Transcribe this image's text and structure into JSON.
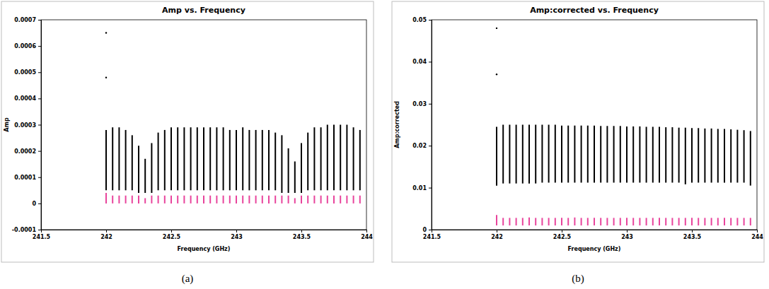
{
  "chart_data": [
    {
      "type": "range",
      "title": "Amp vs. Frequency",
      "x_label": "Frequency (GHz)",
      "y_label": "Amp",
      "caption": "(a)",
      "xlim": [
        241.5,
        244
      ],
      "xticks": [
        241.5,
        242,
        242.5,
        243,
        243.5,
        244
      ],
      "ylim": [
        -0.0001,
        0.0007
      ],
      "yticks": [
        -0.0001,
        0,
        0.0001,
        0.0002,
        0.0003,
        0.0004,
        0.0005,
        0.0006,
        0.0007
      ],
      "series": [
        {
          "color": "#000000",
          "x": [
            242,
            242.05,
            242.1,
            242.15,
            242.2,
            242.25,
            242.3,
            242.35,
            242.4,
            242.45,
            242.5,
            242.55,
            242.6,
            242.65,
            242.7,
            242.75,
            242.8,
            242.85,
            242.9,
            242.95,
            243,
            243.05,
            243.1,
            243.15,
            243.2,
            243.25,
            243.3,
            243.35,
            243.4,
            243.45,
            243.5,
            243.55,
            243.6,
            243.65,
            243.7,
            243.75,
            243.8,
            243.85,
            243.9,
            243.95
          ],
          "low": [
            5e-05,
            5e-05,
            5e-05,
            5e-05,
            5e-05,
            4e-05,
            4e-05,
            4e-05,
            5e-05,
            5e-05,
            5e-05,
            5e-05,
            5e-05,
            5e-05,
            5e-05,
            5e-05,
            5e-05,
            5e-05,
            5e-05,
            5e-05,
            5e-05,
            5e-05,
            5e-05,
            5e-05,
            5e-05,
            5e-05,
            5e-05,
            4e-05,
            4e-05,
            4e-05,
            4e-05,
            5e-05,
            5e-05,
            5e-05,
            5e-05,
            5e-05,
            5e-05,
            5e-05,
            5e-05,
            5e-05
          ],
          "high": [
            0.00028,
            0.00029,
            0.00029,
            0.00028,
            0.00026,
            0.00022,
            0.00017,
            0.00023,
            0.00027,
            0.00028,
            0.00029,
            0.00029,
            0.00029,
            0.00029,
            0.00029,
            0.00029,
            0.00029,
            0.00029,
            0.00029,
            0.00028,
            0.00028,
            0.00029,
            0.00028,
            0.00028,
            0.00028,
            0.00028,
            0.00027,
            0.00026,
            0.00021,
            0.00016,
            0.00023,
            0.00027,
            0.00029,
            0.00029,
            0.0003,
            0.0003,
            0.0003,
            0.0003,
            0.00029,
            0.00028
          ]
        },
        {
          "color": "#e8449c",
          "x": [
            242,
            242.05,
            242.1,
            242.15,
            242.2,
            242.25,
            242.3,
            242.35,
            242.4,
            242.45,
            242.5,
            242.55,
            242.6,
            242.65,
            242.7,
            242.75,
            242.8,
            242.85,
            242.9,
            242.95,
            243,
            243.05,
            243.1,
            243.15,
            243.2,
            243.25,
            243.3,
            243.35,
            243.4,
            243.45,
            243.5,
            243.55,
            243.6,
            243.65,
            243.7,
            243.75,
            243.8,
            243.85,
            243.9,
            243.95
          ],
          "low": [
            0,
            0,
            0,
            0,
            0,
            0,
            0,
            0,
            0,
            0,
            0,
            0,
            0,
            0,
            0,
            0,
            0,
            0,
            0,
            0,
            0,
            0,
            0,
            0,
            0,
            0,
            0,
            0,
            0,
            0,
            0,
            0,
            0,
            0,
            0,
            0,
            0,
            0,
            0,
            0
          ],
          "high": [
            4e-05,
            3e-05,
            3e-05,
            3e-05,
            3e-05,
            3e-05,
            2e-05,
            3e-05,
            3e-05,
            3e-05,
            3e-05,
            3e-05,
            3e-05,
            3e-05,
            3e-05,
            3e-05,
            3e-05,
            3e-05,
            3e-05,
            3e-05,
            3e-05,
            3e-05,
            3e-05,
            3e-05,
            3e-05,
            3e-05,
            3e-05,
            3e-05,
            3e-05,
            2e-05,
            3e-05,
            3e-05,
            3e-05,
            3e-05,
            3e-05,
            3e-05,
            3e-05,
            3e-05,
            3e-05,
            3e-05
          ]
        },
        {
          "type": "scatter",
          "color": "#000000",
          "x": [
            242,
            242
          ],
          "values": [
            0.00065,
            0.00048
          ]
        }
      ]
    },
    {
      "type": "range",
      "title": "Amp:corrected vs. Frequency",
      "x_label": "Frequency (GHz)",
      "y_label": "Amp:corrected",
      "caption": "(b)",
      "xlim": [
        241.5,
        244
      ],
      "xticks": [
        241.5,
        242,
        242.5,
        243,
        243.5,
        244
      ],
      "ylim": [
        0,
        0.05
      ],
      "yticks": [
        0,
        0.01,
        0.02,
        0.03,
        0.04,
        0.05
      ],
      "series": [
        {
          "color": "#000000",
          "x": [
            242,
            242.05,
            242.1,
            242.15,
            242.2,
            242.25,
            242.3,
            242.35,
            242.4,
            242.45,
            242.5,
            242.55,
            242.6,
            242.65,
            242.7,
            242.75,
            242.8,
            242.85,
            242.9,
            242.95,
            243,
            243.05,
            243.1,
            243.15,
            243.2,
            243.25,
            243.3,
            243.35,
            243.4,
            243.45,
            243.5,
            243.55,
            243.6,
            243.65,
            243.7,
            243.75,
            243.8,
            243.85,
            243.9,
            243.95
          ],
          "low": [
            0.0105,
            0.011,
            0.011,
            0.011,
            0.011,
            0.011,
            0.011,
            0.0112,
            0.0112,
            0.0112,
            0.0112,
            0.0112,
            0.0112,
            0.0112,
            0.0112,
            0.0112,
            0.0112,
            0.0112,
            0.0112,
            0.0112,
            0.0112,
            0.0112,
            0.0112,
            0.0112,
            0.0112,
            0.0112,
            0.0112,
            0.0112,
            0.0112,
            0.0108,
            0.0112,
            0.0112,
            0.0112,
            0.0112,
            0.0112,
            0.0112,
            0.0112,
            0.0112,
            0.0112,
            0.0105
          ],
          "high": [
            0.0245,
            0.025,
            0.025,
            0.025,
            0.025,
            0.025,
            0.025,
            0.025,
            0.025,
            0.025,
            0.0248,
            0.0248,
            0.0248,
            0.0248,
            0.0248,
            0.0248,
            0.0247,
            0.0247,
            0.0247,
            0.0247,
            0.0246,
            0.0246,
            0.0246,
            0.0245,
            0.0245,
            0.0245,
            0.0244,
            0.0244,
            0.0243,
            0.0243,
            0.0242,
            0.0242,
            0.0241,
            0.0241,
            0.024,
            0.024,
            0.0239,
            0.0238,
            0.0237,
            0.0235
          ]
        },
        {
          "color": "#e8449c",
          "x": [
            242,
            242.05,
            242.1,
            242.15,
            242.2,
            242.25,
            242.3,
            242.35,
            242.4,
            242.45,
            242.5,
            242.55,
            242.6,
            242.65,
            242.7,
            242.75,
            242.8,
            242.85,
            242.9,
            242.95,
            243,
            243.05,
            243.1,
            243.15,
            243.2,
            243.25,
            243.3,
            243.35,
            243.4,
            243.45,
            243.5,
            243.55,
            243.6,
            243.65,
            243.7,
            243.75,
            243.8,
            243.85,
            243.9,
            243.95
          ],
          "low": [
            0.001,
            0.001,
            0.001,
            0.001,
            0.001,
            0.001,
            0.001,
            0.001,
            0.001,
            0.001,
            0.001,
            0.001,
            0.001,
            0.001,
            0.001,
            0.001,
            0.001,
            0.001,
            0.001,
            0.001,
            0.001,
            0.001,
            0.001,
            0.001,
            0.001,
            0.001,
            0.001,
            0.001,
            0.001,
            0.001,
            0.001,
            0.001,
            0.001,
            0.001,
            0.001,
            0.001,
            0.001,
            0.001,
            0.001,
            0.001
          ],
          "high": [
            0.0035,
            0.0028,
            0.0028,
            0.0028,
            0.0028,
            0.0029,
            0.0028,
            0.0028,
            0.0028,
            0.0028,
            0.0028,
            0.0028,
            0.0029,
            0.0028,
            0.0028,
            0.0028,
            0.0028,
            0.0028,
            0.0028,
            0.0028,
            0.0028,
            0.0028,
            0.0028,
            0.0028,
            0.0028,
            0.0028,
            0.0028,
            0.0028,
            0.0028,
            0.0028,
            0.0028,
            0.0028,
            0.0028,
            0.0028,
            0.0028,
            0.0028,
            0.0028,
            0.0028,
            0.0028,
            0.0028
          ]
        },
        {
          "type": "scatter",
          "color": "#000000",
          "x": [
            242,
            242
          ],
          "values": [
            0.048,
            0.037
          ]
        }
      ]
    }
  ]
}
